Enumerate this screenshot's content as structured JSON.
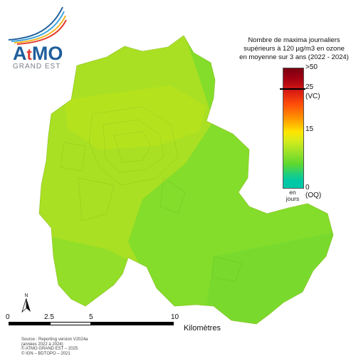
{
  "logo": {
    "brand_a": "A",
    "brand_t": "t",
    "brand_mo": "MO",
    "subtitle": "GRAND EST",
    "swoosh_colors": [
      "#1f5e9c",
      "#3aa3dc",
      "#f2b51c",
      "#e53d2f"
    ]
  },
  "legend": {
    "title_lines": [
      "Nombre de maxima journaliers",
      "supérieurs à 120 µg/m3 en ozone",
      "en moyenne sur 3 ans (2022 - 2024)"
    ],
    "ticks": {
      "t50": ">50",
      "t25": "25",
      "vc": "(VC)",
      "t15": "15",
      "t0": "0",
      "oq": "(OQ)"
    },
    "units": [
      "en",
      "jours"
    ]
  },
  "map": {
    "fill_colors": {
      "west": "#a9e023",
      "north": "#b4e31e",
      "east": "#83dd2a",
      "south_east": "#79da2d",
      "south_west": "#93de28"
    }
  },
  "scale": {
    "labels": [
      "0",
      "2.5",
      "5",
      "10"
    ],
    "unit": "Kilomètres"
  },
  "north_label": "N",
  "source": [
    "Source : Reporting version V2024a",
    "(années 2022 à 2024)",
    "© ATMO GRAND EST – 2025",
    "© IGN – BDTOPO – 2021"
  ]
}
